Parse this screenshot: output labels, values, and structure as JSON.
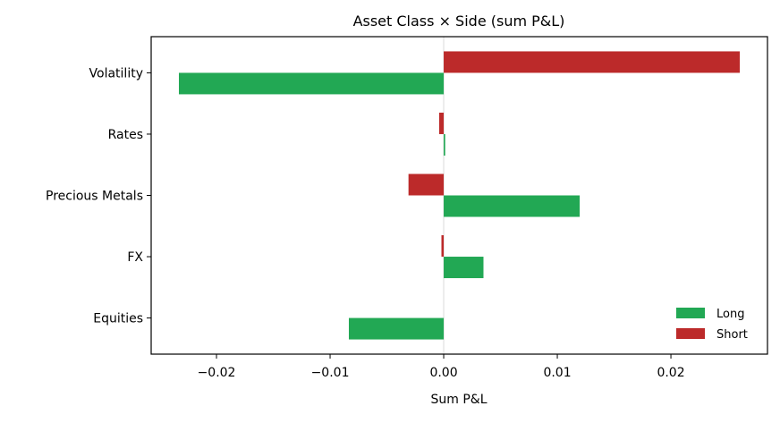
{
  "chart_data": {
    "type": "bar",
    "orientation": "horizontal",
    "title": "Asset Class × Side (sum P&L)",
    "xlabel": "Sum P&L",
    "ylabel": "",
    "categories": [
      "Equities",
      "FX",
      "Precious Metals",
      "Rates",
      "Volatility"
    ],
    "series": [
      {
        "name": "Long",
        "color": "#22a854",
        "values": [
          -0.00835,
          0.0035,
          0.01197,
          0.00013,
          -0.02331
        ]
      },
      {
        "name": "Short",
        "color": "#bc2a2a",
        "values": [
          0,
          -0.0002,
          -0.0031,
          -0.0004,
          0.02606
        ]
      }
    ],
    "xlim": [
      -0.02575,
      0.0285
    ],
    "xticks": [
      -0.02,
      -0.01,
      0.0,
      0.01,
      0.02
    ],
    "xtick_labels": [
      "−0.02",
      "−0.01",
      "0.00",
      "0.01",
      "0.02"
    ],
    "zero_line": true,
    "grid": false,
    "legend_position": "lower-right"
  }
}
